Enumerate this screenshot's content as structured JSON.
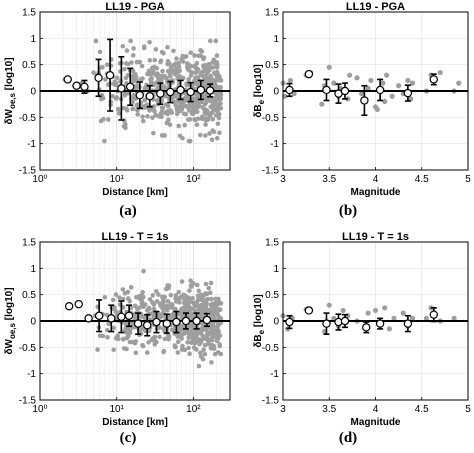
{
  "figure": {
    "panel_labels": [
      "(a)",
      "(b)",
      "(c)",
      "(d)"
    ]
  },
  "chart_data": [
    {
      "type": "scatter",
      "title": "LL19 - PGA",
      "xlabel": "Distance [km]",
      "ylabel": "δW",
      "ylabel_sub": "oe,s",
      "ylabel_tail": " [log10]",
      "xscale": "log",
      "xlim": [
        1,
        300
      ],
      "ylim": [
        -1.5,
        1.5
      ],
      "xticks": [
        1,
        10,
        100
      ],
      "xtick_labels": [
        "10⁰",
        "10¹",
        "10²"
      ],
      "yticks": [
        -1.5,
        -1,
        -0.5,
        0,
        0.5,
        1,
        1.5
      ],
      "ytick_labels": [
        "-1.5",
        "-1",
        "-0.5",
        "0",
        "0.5",
        "1",
        "1.5"
      ],
      "grid": true,
      "colors": {
        "scatter": "#9e9e9e",
        "bins": "#000000",
        "zero_line": "#000000"
      },
      "scatter_cloud": {
        "x_range": [
          5,
          230
        ],
        "y_center": 0.0,
        "y_spread": 0.35,
        "count": 600
      },
      "scatter_extra": [
        [
          2.1,
          0.22
        ],
        [
          2.8,
          0.1
        ],
        [
          3.5,
          0.15
        ],
        [
          4.2,
          0.0
        ],
        [
          5.0,
          0.35
        ],
        [
          5.5,
          0.3
        ],
        [
          6.5,
          0.45
        ],
        [
          7.5,
          0.5
        ],
        [
          8.5,
          0.6
        ],
        [
          12,
          0.85
        ],
        [
          13,
          -0.7
        ],
        [
          20,
          0.55
        ],
        [
          30,
          -0.8
        ]
      ],
      "binned": [
        {
          "x": 2.3,
          "y": 0.22,
          "err": 0.0
        },
        {
          "x": 3.0,
          "y": 0.1,
          "err": 0.0
        },
        {
          "x": 3.8,
          "y": 0.08,
          "err": 0.12
        },
        {
          "x": 5.8,
          "y": 0.25,
          "err": 0.35
        },
        {
          "x": 8.2,
          "y": 0.3,
          "err": 0.68
        },
        {
          "x": 11.5,
          "y": 0.05,
          "err": 0.6
        },
        {
          "x": 15,
          "y": 0.08,
          "err": 0.35
        },
        {
          "x": 20,
          "y": -0.08,
          "err": 0.25
        },
        {
          "x": 27,
          "y": -0.1,
          "err": 0.2
        },
        {
          "x": 37,
          "y": -0.05,
          "err": 0.2
        },
        {
          "x": 50,
          "y": -0.02,
          "err": 0.2
        },
        {
          "x": 68,
          "y": 0.02,
          "err": 0.18
        },
        {
          "x": 92,
          "y": -0.02,
          "err": 0.18
        },
        {
          "x": 125,
          "y": 0.02,
          "err": 0.18
        },
        {
          "x": 165,
          "y": 0.01,
          "err": 0.12
        }
      ]
    },
    {
      "type": "scatter",
      "title": "LL19 - PGA",
      "xlabel": "Magnitude",
      "ylabel": "δB",
      "ylabel_sub": "e",
      "ylabel_tail": " [log10]",
      "xscale": "linear",
      "xlim": [
        3,
        5
      ],
      "ylim": [
        -1.5,
        1.5
      ],
      "xticks": [
        3,
        3.5,
        4,
        4.5,
        5
      ],
      "xtick_labels": [
        "3",
        "3.5",
        "4",
        "4.5",
        "5"
      ],
      "yticks": [
        -1.5,
        -1,
        -0.5,
        0,
        0.5,
        1,
        1.5
      ],
      "ytick_labels": [
        "-1.5",
        "-1",
        "-0.5",
        "0",
        "0.5",
        "1",
        "1.5"
      ],
      "grid": true,
      "colors": {
        "scatter": "#9e9e9e",
        "bins": "#000000",
        "zero_line": "#000000"
      },
      "scatter_points": [
        [
          3.0,
          0.15
        ],
        [
          3.02,
          -0.1
        ],
        [
          3.08,
          0.2
        ],
        [
          3.12,
          -0.05
        ],
        [
          3.25,
          0.3
        ],
        [
          3.3,
          0.35
        ],
        [
          3.42,
          -0.25
        ],
        [
          3.45,
          0.1
        ],
        [
          3.5,
          0.45
        ],
        [
          3.55,
          0.15
        ],
        [
          3.6,
          -0.1
        ],
        [
          3.62,
          0.05
        ],
        [
          3.7,
          -0.15
        ],
        [
          3.72,
          0.3
        ],
        [
          3.8,
          0.25
        ],
        [
          3.85,
          -0.05
        ],
        [
          3.92,
          0.05
        ],
        [
          3.95,
          0.2
        ],
        [
          4.0,
          -0.3
        ],
        [
          4.02,
          -0.35
        ],
        [
          4.08,
          0.15
        ],
        [
          4.1,
          -0.2
        ],
        [
          4.12,
          0.3
        ],
        [
          4.18,
          -0.1
        ],
        [
          4.25,
          0.1
        ],
        [
          4.3,
          -0.05
        ],
        [
          4.35,
          0.2
        ],
        [
          4.38,
          -0.15
        ],
        [
          4.4,
          0.15
        ],
        [
          4.55,
          0.0
        ],
        [
          4.6,
          0.3
        ],
        [
          4.7,
          0.35
        ],
        [
          4.85,
          0.0
        ],
        [
          4.9,
          0.15
        ]
      ],
      "binned": [
        {
          "x": 3.07,
          "y": 0.02,
          "err": 0.12
        },
        {
          "x": 3.28,
          "y": 0.32,
          "err": 0.0
        },
        {
          "x": 3.47,
          "y": 0.02,
          "err": 0.2
        },
        {
          "x": 3.6,
          "y": -0.05,
          "err": 0.18
        },
        {
          "x": 3.67,
          "y": 0.0,
          "err": 0.15
        },
        {
          "x": 3.88,
          "y": -0.18,
          "err": 0.28
        },
        {
          "x": 4.05,
          "y": 0.02,
          "err": 0.2
        },
        {
          "x": 4.35,
          "y": -0.04,
          "err": 0.15
        },
        {
          "x": 4.63,
          "y": 0.22,
          "err": 0.1
        }
      ]
    },
    {
      "type": "scatter",
      "title": "LL19 - T = 1s",
      "xlabel": "Distance [km]",
      "ylabel": "δW",
      "ylabel_sub": "oe,s",
      "ylabel_tail": " [log10]",
      "xscale": "log",
      "xlim": [
        1,
        300
      ],
      "ylim": [
        -1.5,
        1.5
      ],
      "xticks": [
        1,
        10,
        100
      ],
      "xtick_labels": [
        "10⁰",
        "10¹",
        "10²"
      ],
      "yticks": [
        -1.5,
        -1,
        -0.5,
        0,
        0.5,
        1,
        1.5
      ],
      "ytick_labels": [
        "-1.5",
        "-1",
        "-0.5",
        "0",
        "0.5",
        "1",
        "1.5"
      ],
      "grid": true,
      "colors": {
        "scatter": "#9e9e9e",
        "bins": "#000000",
        "zero_line": "#000000"
      },
      "scatter_cloud": {
        "x_range": [
          5,
          230
        ],
        "y_center": 0.0,
        "y_spread": 0.3,
        "count": 600
      },
      "scatter_extra": [
        [
          2.5,
          0.28
        ],
        [
          3.2,
          0.3
        ],
        [
          4.2,
          0.05
        ],
        [
          5.2,
          0.1
        ],
        [
          7,
          0.45
        ],
        [
          9,
          0.4
        ],
        [
          12,
          0.6
        ],
        [
          14,
          0.55
        ],
        [
          18,
          0.45
        ],
        [
          25,
          -0.6
        ],
        [
          35,
          0.5
        ]
      ],
      "binned": [
        {
          "x": 2.4,
          "y": 0.28,
          "err": 0.0
        },
        {
          "x": 3.2,
          "y": 0.32,
          "err": 0.0
        },
        {
          "x": 4.3,
          "y": 0.05,
          "err": 0.0
        },
        {
          "x": 5.9,
          "y": 0.1,
          "err": 0.3
        },
        {
          "x": 8.5,
          "y": 0.05,
          "err": 0.25
        },
        {
          "x": 11.5,
          "y": 0.08,
          "err": 0.3
        },
        {
          "x": 14.5,
          "y": 0.1,
          "err": 0.2
        },
        {
          "x": 19,
          "y": -0.05,
          "err": 0.2
        },
        {
          "x": 25,
          "y": -0.08,
          "err": 0.2
        },
        {
          "x": 33,
          "y": -0.02,
          "err": 0.2
        },
        {
          "x": 45,
          "y": -0.05,
          "err": 0.18
        },
        {
          "x": 60,
          "y": -0.02,
          "err": 0.2
        },
        {
          "x": 80,
          "y": 0.0,
          "err": 0.15
        },
        {
          "x": 110,
          "y": 0.0,
          "err": 0.15
        },
        {
          "x": 150,
          "y": 0.02,
          "err": 0.12
        }
      ]
    },
    {
      "type": "scatter",
      "title": "LL19 - T = 1s",
      "xlabel": "Magnitude",
      "ylabel": "δB",
      "ylabel_sub": "e",
      "ylabel_tail": " [log10]",
      "xscale": "linear",
      "xlim": [
        3,
        5
      ],
      "ylim": [
        -1.5,
        1.5
      ],
      "xticks": [
        3,
        3.5,
        4,
        4.5,
        5
      ],
      "xtick_labels": [
        "3",
        "3.5",
        "4",
        "4.5",
        "5"
      ],
      "yticks": [
        -1.5,
        -1,
        -0.5,
        0,
        0.5,
        1,
        1.5
      ],
      "ytick_labels": [
        "-1.5",
        "-1",
        "-0.5",
        "0",
        "0.5",
        "1",
        "1.5"
      ],
      "grid": true,
      "colors": {
        "scatter": "#9e9e9e",
        "bins": "#000000",
        "zero_line": "#000000"
      },
      "scatter_points": [
        [
          3.0,
          0.1
        ],
        [
          3.05,
          -0.15
        ],
        [
          3.1,
          0.05
        ],
        [
          3.25,
          0.22
        ],
        [
          3.3,
          0.2
        ],
        [
          3.45,
          -0.2
        ],
        [
          3.5,
          0.3
        ],
        [
          3.55,
          0.05
        ],
        [
          3.6,
          -0.1
        ],
        [
          3.65,
          0.2
        ],
        [
          3.7,
          0.1
        ],
        [
          3.8,
          0.0
        ],
        [
          3.9,
          -0.15
        ],
        [
          3.92,
          0.15
        ],
        [
          4.0,
          0.2
        ],
        [
          4.05,
          -0.05
        ],
        [
          4.1,
          0.25
        ],
        [
          4.15,
          -0.15
        ],
        [
          4.2,
          0.05
        ],
        [
          4.3,
          0.15
        ],
        [
          4.35,
          -0.1
        ],
        [
          4.4,
          0.05
        ],
        [
          4.55,
          0.05
        ],
        [
          4.6,
          0.25
        ],
        [
          4.7,
          0.0
        ],
        [
          4.85,
          0.05
        ]
      ],
      "binned": [
        {
          "x": 3.07,
          "y": -0.02,
          "err": 0.12
        },
        {
          "x": 3.28,
          "y": 0.2,
          "err": 0.0
        },
        {
          "x": 3.47,
          "y": -0.05,
          "err": 0.2
        },
        {
          "x": 3.6,
          "y": -0.02,
          "err": 0.15
        },
        {
          "x": 3.67,
          "y": 0.0,
          "err": 0.12
        },
        {
          "x": 3.9,
          "y": -0.12,
          "err": 0.1
        },
        {
          "x": 4.05,
          "y": -0.05,
          "err": 0.1
        },
        {
          "x": 4.35,
          "y": -0.05,
          "err": 0.15
        },
        {
          "x": 4.63,
          "y": 0.12,
          "err": 0.13
        }
      ]
    }
  ]
}
